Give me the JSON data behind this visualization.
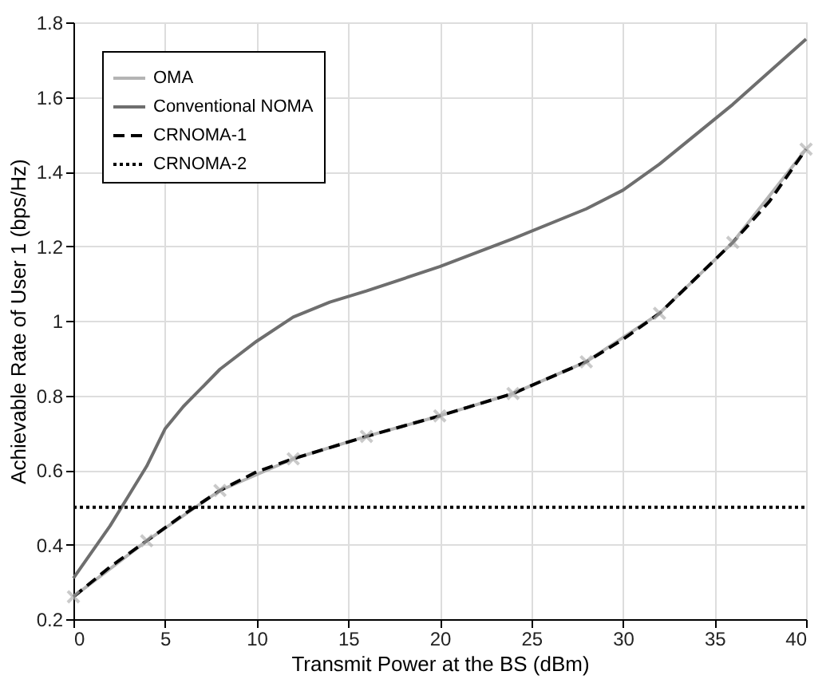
{
  "chart_data": {
    "type": "line",
    "xlabel": "Transmit Power at the BS (dBm)",
    "ylabel": "Achievable Rate of User 1 (bps/Hz)",
    "xlim": [
      0,
      40
    ],
    "ylim": [
      0.2,
      1.8
    ],
    "xticks": [
      0,
      5,
      10,
      15,
      20,
      25,
      30,
      35,
      40
    ],
    "yticks": [
      0.2,
      0.4,
      0.6,
      0.8,
      1,
      1.2,
      1.4,
      1.6,
      1.8
    ],
    "grid": true,
    "legend": "top left",
    "series": [
      {
        "name": "OMA",
        "color": "#b4b4b4",
        "line_style": "solid",
        "marker": "cross",
        "x": [
          0,
          4,
          8,
          12,
          16,
          20,
          24,
          28,
          32,
          36,
          40
        ],
        "values": [
          0.26,
          0.41,
          0.545,
          0.63,
          0.69,
          0.745,
          0.805,
          0.89,
          1.02,
          1.21,
          1.46
        ]
      },
      {
        "name": "Conventional NOMA",
        "color": "#6e6e6e",
        "line_style": "solid",
        "x": [
          0,
          1,
          2,
          3,
          4,
          5,
          6,
          8,
          10,
          12,
          14,
          16,
          20,
          24,
          28,
          30,
          32,
          36,
          40
        ],
        "values": [
          0.31,
          0.38,
          0.45,
          0.53,
          0.61,
          0.71,
          0.77,
          0.87,
          0.945,
          1.01,
          1.05,
          1.08,
          1.145,
          1.22,
          1.3,
          1.35,
          1.42,
          1.58,
          1.755
        ]
      },
      {
        "name": "CRNOMA-1",
        "color": "#000000",
        "line_style": "dashed",
        "x": [
          0,
          2,
          4,
          6,
          8,
          10,
          12,
          16,
          20,
          24,
          28,
          30,
          32,
          36,
          38,
          40
        ],
        "values": [
          0.26,
          0.34,
          0.41,
          0.48,
          0.545,
          0.595,
          0.63,
          0.69,
          0.745,
          0.805,
          0.89,
          0.95,
          1.02,
          1.21,
          1.32,
          1.46
        ]
      },
      {
        "name": "CRNOMA-2",
        "color": "#000000",
        "line_style": "dotted",
        "x": [
          0,
          40
        ],
        "values": [
          0.5,
          0.5
        ]
      }
    ]
  }
}
